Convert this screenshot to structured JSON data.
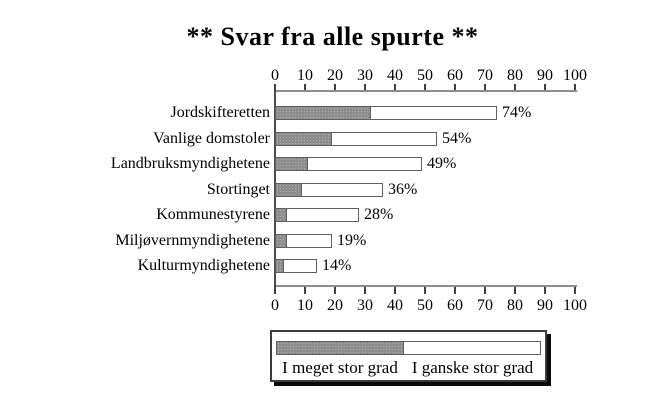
{
  "title": "** Svar fra alle spurte **",
  "colors": {
    "background": "#ffffff",
    "dark_fill": "#8d8d8d",
    "light_fill": "#ffffff",
    "bar_border": "#5f5f5f",
    "axis_line": "#8c8c8c",
    "tick": "#3f3f3f",
    "text": "#000000",
    "legend_border": "#3c3c3c",
    "legend_shadow": "#0a0a0a"
  },
  "chart_data": {
    "type": "bar",
    "orientation": "horizontal",
    "stacked": true,
    "title": "** Svar fra alle spurte **",
    "categories": [
      "Jordskifteretten",
      "Vanlige domstoler",
      "Landbruksmyndighetene",
      "Stortinget",
      "Kommunestyrene",
      "Miljøvernmyndighetene",
      "Kulturmyndighetene"
    ],
    "series": [
      {
        "name": "I meget stor grad",
        "color": "#8d8d8d",
        "values": [
          32,
          19,
          11,
          9,
          4,
          4,
          3
        ]
      },
      {
        "name": "I ganske stor grad",
        "color": "#ffffff",
        "values": [
          42,
          35,
          38,
          27,
          24,
          15,
          11
        ]
      }
    ],
    "totals": [
      74,
      54,
      49,
      36,
      28,
      19,
      14
    ],
    "total_labels": [
      "74%",
      "54%",
      "49%",
      "36%",
      "28%",
      "19%",
      "14%"
    ],
    "axis": {
      "min": 0,
      "max": 100,
      "tick_step": 10,
      "tick_labels": [
        "0",
        "10",
        "20",
        "30",
        "40",
        "50",
        "60",
        "70",
        "80",
        "90",
        "100"
      ],
      "position": "top and bottom"
    },
    "legend": {
      "position": "bottom",
      "entries": [
        "I meget stor grad",
        "I ganske stor grad"
      ]
    },
    "grid": false
  }
}
